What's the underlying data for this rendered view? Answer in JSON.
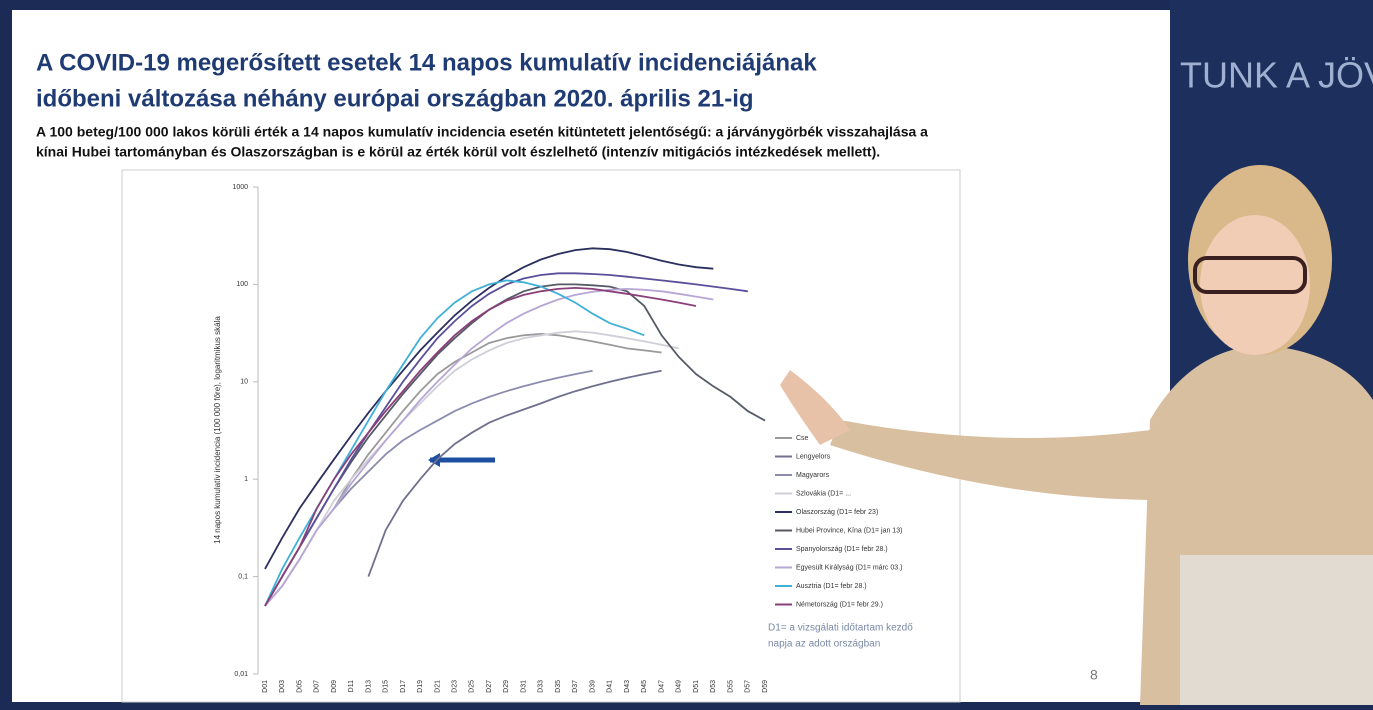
{
  "slide": {
    "title_line1": "A COVID-19 megerősített esetek 14 napos kumulatív incidenciájának",
    "title_line2": "időbeni változása néhány európai országban 2020. április 21-ig",
    "subtitle_line1": "A 100 beteg/100 000 lakos körüli érték a 14 napos kumulatív incidencia esetén kitüntetett jelentőségű: a járványgörbék visszahajlása a",
    "subtitle_line2": "kínai Hubei tartományban és Olaszországban is e körül az érték körül volt észlelhető (intenzív mitigációs intézkedések mellett).",
    "note_line1": "D1= a vizsgálati időtartam kezdő",
    "note_line2": "napja az adott országban",
    "page_number": "8",
    "backdrop_text": "TUNK A JÖV"
  },
  "chart_data": {
    "type": "line",
    "y_label": "14 napos kumulatív incidencia (100 000 főre), logaritmikus skála",
    "log_scale": true,
    "categories": [
      "D01",
      "D03",
      "D05",
      "D07",
      "D09",
      "D11",
      "D13",
      "D15",
      "D17",
      "D19",
      "D21",
      "D23",
      "D25",
      "D27",
      "D29",
      "D31",
      "D33",
      "D35",
      "D37",
      "D39",
      "D41",
      "D43",
      "D45",
      "D47",
      "D49",
      "D51",
      "D53",
      "D55",
      "D57",
      "D59"
    ],
    "ylim": [
      0.01,
      1000
    ],
    "yticks": [
      {
        "value": 0.01,
        "label": "0,01"
      },
      {
        "value": 0.1,
        "label": "0,1"
      },
      1,
      10,
      100,
      1000
    ],
    "series": [
      {
        "name": "Cse",
        "color": "#9a9a9a",
        "values": [
          null,
          null,
          null,
          null,
          0.5,
          1,
          1.8,
          3,
          5,
          8,
          12,
          16,
          20,
          25,
          28,
          30,
          31,
          30,
          28,
          26,
          24,
          22,
          21,
          20,
          null,
          null,
          null,
          null,
          null,
          null
        ]
      },
      {
        "name": "Lengyelors",
        "color": "#6f6f8f",
        "values": [
          null,
          null,
          null,
          null,
          null,
          null,
          0.1,
          0.3,
          0.6,
          1,
          1.6,
          2.3,
          3,
          3.8,
          4.5,
          5.2,
          6,
          7,
          8,
          9,
          10,
          11,
          12,
          13,
          null,
          null,
          null,
          null,
          null,
          null
        ]
      },
      {
        "name": "Magyarors",
        "color": "#8c8cb0",
        "values": [
          0.05,
          0.08,
          0.15,
          0.3,
          0.5,
          0.8,
          1.2,
          1.8,
          2.5,
          3.2,
          4,
          5,
          6,
          7,
          8,
          9,
          10,
          11,
          12,
          13,
          null,
          null,
          null,
          null,
          null,
          null,
          null,
          null,
          null,
          null
        ]
      },
      {
        "name": "Szlovákia (D1= ...",
        "color": "#cfcfd8",
        "values": [
          0.05,
          0.08,
          0.15,
          0.3,
          0.6,
          1,
          1.6,
          2.5,
          4,
          6,
          9,
          13,
          17,
          21,
          25,
          28,
          30,
          32,
          33,
          32,
          30,
          28,
          26,
          24,
          22,
          null,
          null,
          null,
          null,
          null
        ]
      },
      {
        "name": "Olaszország (D1= febr 23)",
        "color": "#2b2f5e",
        "values": [
          0.12,
          0.25,
          0.5,
          0.9,
          1.6,
          2.8,
          4.8,
          8,
          13,
          21,
          32,
          48,
          68,
          92,
          120,
          150,
          180,
          205,
          225,
          235,
          230,
          215,
          195,
          175,
          160,
          150,
          145,
          null,
          null,
          null
        ]
      },
      {
        "name": "Hubei Province, Kína (D1= jan 13)",
        "color": "#555a66",
        "values": [
          0.05,
          0.1,
          0.2,
          0.4,
          0.8,
          1.5,
          2.7,
          4.5,
          7.5,
          12,
          19,
          28,
          40,
          55,
          70,
          85,
          95,
          100,
          100,
          98,
          95,
          85,
          60,
          30,
          18,
          12,
          9,
          7,
          5,
          4
        ]
      },
      {
        "name": "Spanyolország (D1= febr 28.)",
        "color": "#5a4f9a",
        "values": [
          0.05,
          0.1,
          0.2,
          0.4,
          0.8,
          1.6,
          3,
          5.5,
          10,
          17,
          28,
          42,
          60,
          80,
          100,
          115,
          125,
          130,
          130,
          128,
          125,
          120,
          115,
          110,
          105,
          100,
          95,
          90,
          85,
          null
        ]
      },
      {
        "name": "Egyesült Királyság (D1= márc 03.)",
        "color": "#b7a6d6",
        "values": [
          0.05,
          0.08,
          0.15,
          0.3,
          0.5,
          0.9,
          1.5,
          2.5,
          4,
          6.5,
          10,
          15,
          22,
          30,
          40,
          50,
          60,
          70,
          78,
          84,
          88,
          90,
          88,
          85,
          80,
          75,
          70,
          null,
          null,
          null
        ]
      },
      {
        "name": "Ausztria (D1= febr 28.)",
        "color": "#3fb0d8",
        "values": [
          0.05,
          0.12,
          0.25,
          0.5,
          1,
          2,
          4,
          8,
          15,
          28,
          45,
          65,
          85,
          100,
          110,
          105,
          95,
          80,
          65,
          50,
          40,
          35,
          30,
          null,
          null,
          null,
          null,
          null,
          null,
          null
        ]
      },
      {
        "name": "Németország (D1= febr 29.)",
        "color": "#8a3f7a",
        "values": [
          0.05,
          0.1,
          0.2,
          0.5,
          1,
          1.8,
          3,
          5,
          8,
          13,
          20,
          30,
          42,
          55,
          68,
          78,
          85,
          90,
          92,
          90,
          85,
          80,
          75,
          70,
          65,
          60,
          null,
          null,
          null,
          null
        ]
      }
    ]
  }
}
